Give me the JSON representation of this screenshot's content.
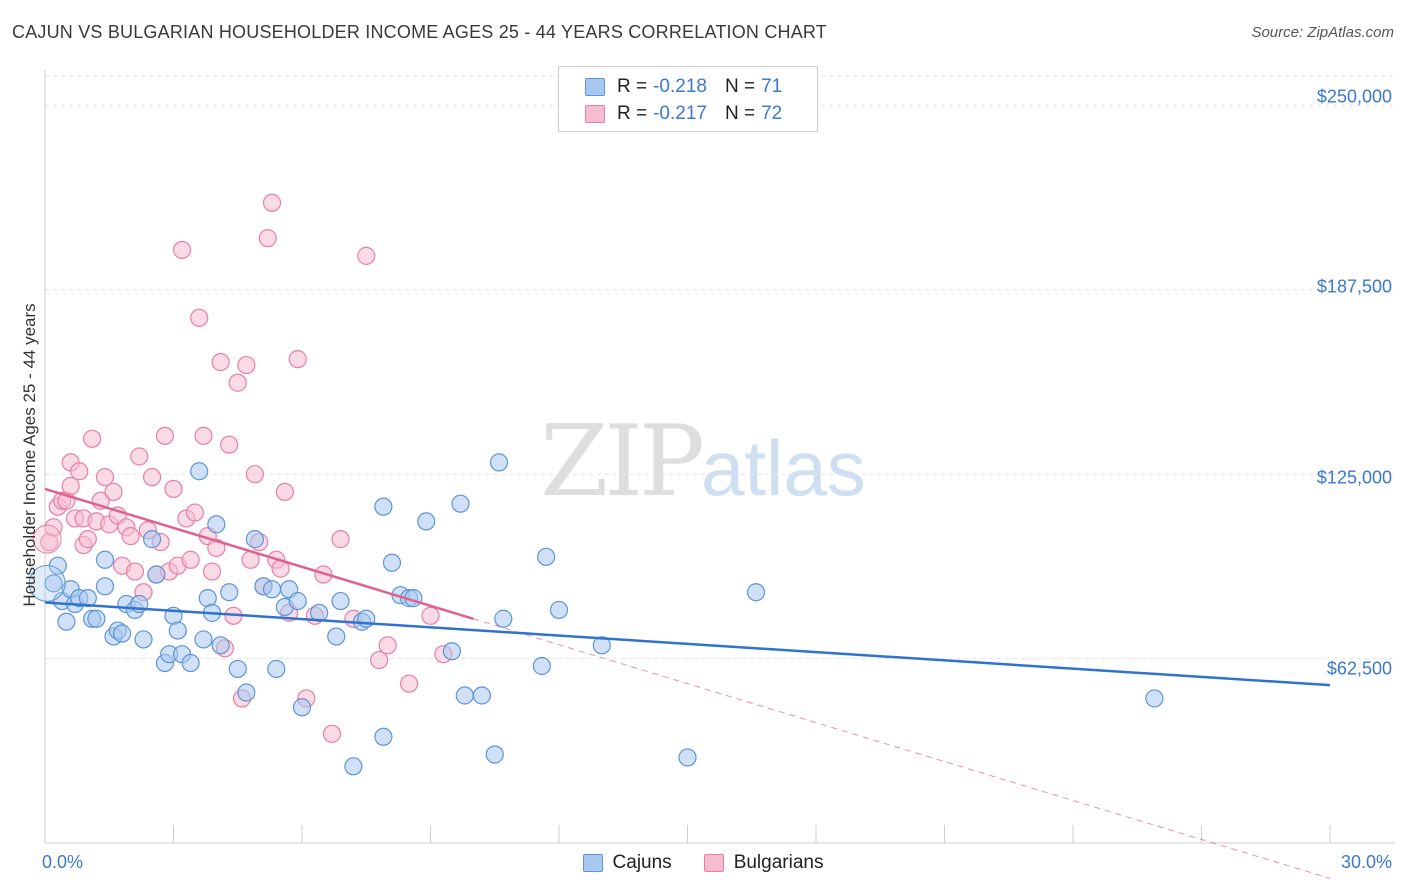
{
  "title": "CAJUN VS BULGARIAN HOUSEHOLDER INCOME AGES 25 - 44 YEARS CORRELATION CHART",
  "source": "Source: ZipAtlas.com",
  "watermark": {
    "zip": "ZIP",
    "atlas": "atlas"
  },
  "colors": {
    "cajun_fill": "#a9c8f0",
    "cajun_stroke": "#5d95d8",
    "cajun_line": "#2f72cf",
    "bulgarian_fill": "#f6bdd0",
    "bulgarian_stroke": "#e87fa4",
    "bulgarian_line": "#e0608e",
    "axis_text": "#3b79d0"
  },
  "legend": {
    "r_label": "R =",
    "n_label": "N =",
    "cajun_r": "-0.218",
    "cajun_n": "71",
    "bulgarian_r": "-0.217",
    "bulgarian_n": "72"
  },
  "bottom_legend": {
    "cajun": "Cajuns",
    "bulgarian": "Bulgarians"
  },
  "chart_data": {
    "type": "scatter",
    "ylabel": "Householder Income Ages 25 - 44 years",
    "xlim": [
      0,
      30
    ],
    "ylim": [
      0,
      262000
    ],
    "x_tick_labels": [
      "0.0%",
      "30.0%"
    ],
    "y_ticks": [
      62500,
      125000,
      187500,
      250000
    ],
    "y_tick_labels": [
      "$62,500",
      "$125,000",
      "$187,500",
      "$250,000"
    ],
    "grid": true,
    "series": [
      {
        "name": "Cajuns",
        "trend": {
          "x0": 0,
          "y0": 81500,
          "x1": 30,
          "y1": 53500
        },
        "points": [
          [
            0.2,
            88000
          ],
          [
            0.3,
            94000
          ],
          [
            0.4,
            82000
          ],
          [
            0.5,
            75000
          ],
          [
            0.6,
            86000
          ],
          [
            0.7,
            81000
          ],
          [
            0.8,
            83000
          ],
          [
            1.0,
            83000
          ],
          [
            1.1,
            76000
          ],
          [
            1.2,
            76000
          ],
          [
            1.4,
            87000
          ],
          [
            1.4,
            96000
          ],
          [
            1.6,
            70000
          ],
          [
            1.7,
            72000
          ],
          [
            1.8,
            71000
          ],
          [
            1.9,
            81000
          ],
          [
            2.1,
            79000
          ],
          [
            2.2,
            81000
          ],
          [
            2.3,
            69000
          ],
          [
            2.5,
            103000
          ],
          [
            2.6,
            91000
          ],
          [
            2.8,
            61000
          ],
          [
            2.9,
            64000
          ],
          [
            3.0,
            77000
          ],
          [
            3.1,
            72000
          ],
          [
            3.2,
            64000
          ],
          [
            3.4,
            61000
          ],
          [
            3.6,
            126000
          ],
          [
            3.7,
            69000
          ],
          [
            3.8,
            83000
          ],
          [
            3.9,
            78000
          ],
          [
            4.0,
            108000
          ],
          [
            4.1,
            67000
          ],
          [
            4.3,
            85000
          ],
          [
            4.5,
            59000
          ],
          [
            4.7,
            51000
          ],
          [
            4.9,
            103000
          ],
          [
            5.1,
            87000
          ],
          [
            5.3,
            86000
          ],
          [
            5.4,
            59000
          ],
          [
            5.6,
            80000
          ],
          [
            5.7,
            86000
          ],
          [
            5.9,
            82000
          ],
          [
            6.0,
            46000
          ],
          [
            6.4,
            78000
          ],
          [
            6.8,
            70000
          ],
          [
            6.9,
            82000
          ],
          [
            7.2,
            26000
          ],
          [
            7.4,
            75000
          ],
          [
            7.5,
            76000
          ],
          [
            7.9,
            114000
          ],
          [
            7.9,
            36000
          ],
          [
            8.1,
            95000
          ],
          [
            8.3,
            84000
          ],
          [
            8.5,
            83000
          ],
          [
            8.6,
            83000
          ],
          [
            8.9,
            109000
          ],
          [
            9.5,
            65000
          ],
          [
            9.7,
            115000
          ],
          [
            9.8,
            50000
          ],
          [
            10.2,
            50000
          ],
          [
            10.5,
            30000
          ],
          [
            10.6,
            129000
          ],
          [
            10.7,
            76000
          ],
          [
            11.6,
            60000
          ],
          [
            11.7,
            97000
          ],
          [
            12.0,
            79000
          ],
          [
            13.0,
            67000
          ],
          [
            15.0,
            29000
          ],
          [
            16.6,
            85000
          ],
          [
            25.9,
            49000
          ]
        ]
      },
      {
        "name": "Bulgarians",
        "trend": {
          "x0": 0,
          "y0": 120000,
          "x1": 10.0,
          "y1": 76000
        },
        "trend_extension": {
          "x0": 10.0,
          "y0": 76000,
          "x1": 30,
          "y1": -12000
        },
        "points": [
          [
            0.1,
            102000
          ],
          [
            0.2,
            107000
          ],
          [
            0.3,
            114000
          ],
          [
            0.4,
            116000
          ],
          [
            0.5,
            116000
          ],
          [
            0.6,
            129000
          ],
          [
            0.6,
            121000
          ],
          [
            0.7,
            110000
          ],
          [
            0.8,
            126000
          ],
          [
            0.9,
            101000
          ],
          [
            0.9,
            110000
          ],
          [
            1.0,
            103000
          ],
          [
            1.1,
            137000
          ],
          [
            1.2,
            109000
          ],
          [
            1.3,
            116000
          ],
          [
            1.4,
            124000
          ],
          [
            1.5,
            108000
          ],
          [
            1.6,
            119000
          ],
          [
            1.7,
            111000
          ],
          [
            1.8,
            94000
          ],
          [
            1.9,
            107000
          ],
          [
            2.0,
            104000
          ],
          [
            2.1,
            92000
          ],
          [
            2.2,
            131000
          ],
          [
            2.3,
            85000
          ],
          [
            2.4,
            106000
          ],
          [
            2.5,
            124000
          ],
          [
            2.6,
            91000
          ],
          [
            2.7,
            102000
          ],
          [
            2.8,
            138000
          ],
          [
            2.9,
            92000
          ],
          [
            3.0,
            120000
          ],
          [
            3.1,
            94000
          ],
          [
            3.2,
            201000
          ],
          [
            3.3,
            110000
          ],
          [
            3.4,
            96000
          ],
          [
            3.5,
            112000
          ],
          [
            3.6,
            178000
          ],
          [
            3.7,
            138000
          ],
          [
            3.8,
            104000
          ],
          [
            3.9,
            92000
          ],
          [
            4.0,
            100000
          ],
          [
            4.1,
            163000
          ],
          [
            4.2,
            66000
          ],
          [
            4.3,
            135000
          ],
          [
            4.4,
            77000
          ],
          [
            4.5,
            156000
          ],
          [
            4.6,
            49000
          ],
          [
            4.7,
            162000
          ],
          [
            4.8,
            96000
          ],
          [
            4.9,
            125000
          ],
          [
            5.0,
            102000
          ],
          [
            5.1,
            87000
          ],
          [
            5.2,
            205000
          ],
          [
            5.3,
            217000
          ],
          [
            5.4,
            96000
          ],
          [
            5.5,
            93000
          ],
          [
            5.6,
            119000
          ],
          [
            5.7,
            78000
          ],
          [
            5.9,
            164000
          ],
          [
            6.1,
            49000
          ],
          [
            6.3,
            77000
          ],
          [
            6.5,
            91000
          ],
          [
            6.7,
            37000
          ],
          [
            6.9,
            103000
          ],
          [
            7.2,
            76000
          ],
          [
            7.5,
            199000
          ],
          [
            7.8,
            62000
          ],
          [
            8.0,
            67000
          ],
          [
            8.5,
            54000
          ],
          [
            9.0,
            77000
          ],
          [
            9.3,
            64000
          ]
        ]
      }
    ]
  }
}
